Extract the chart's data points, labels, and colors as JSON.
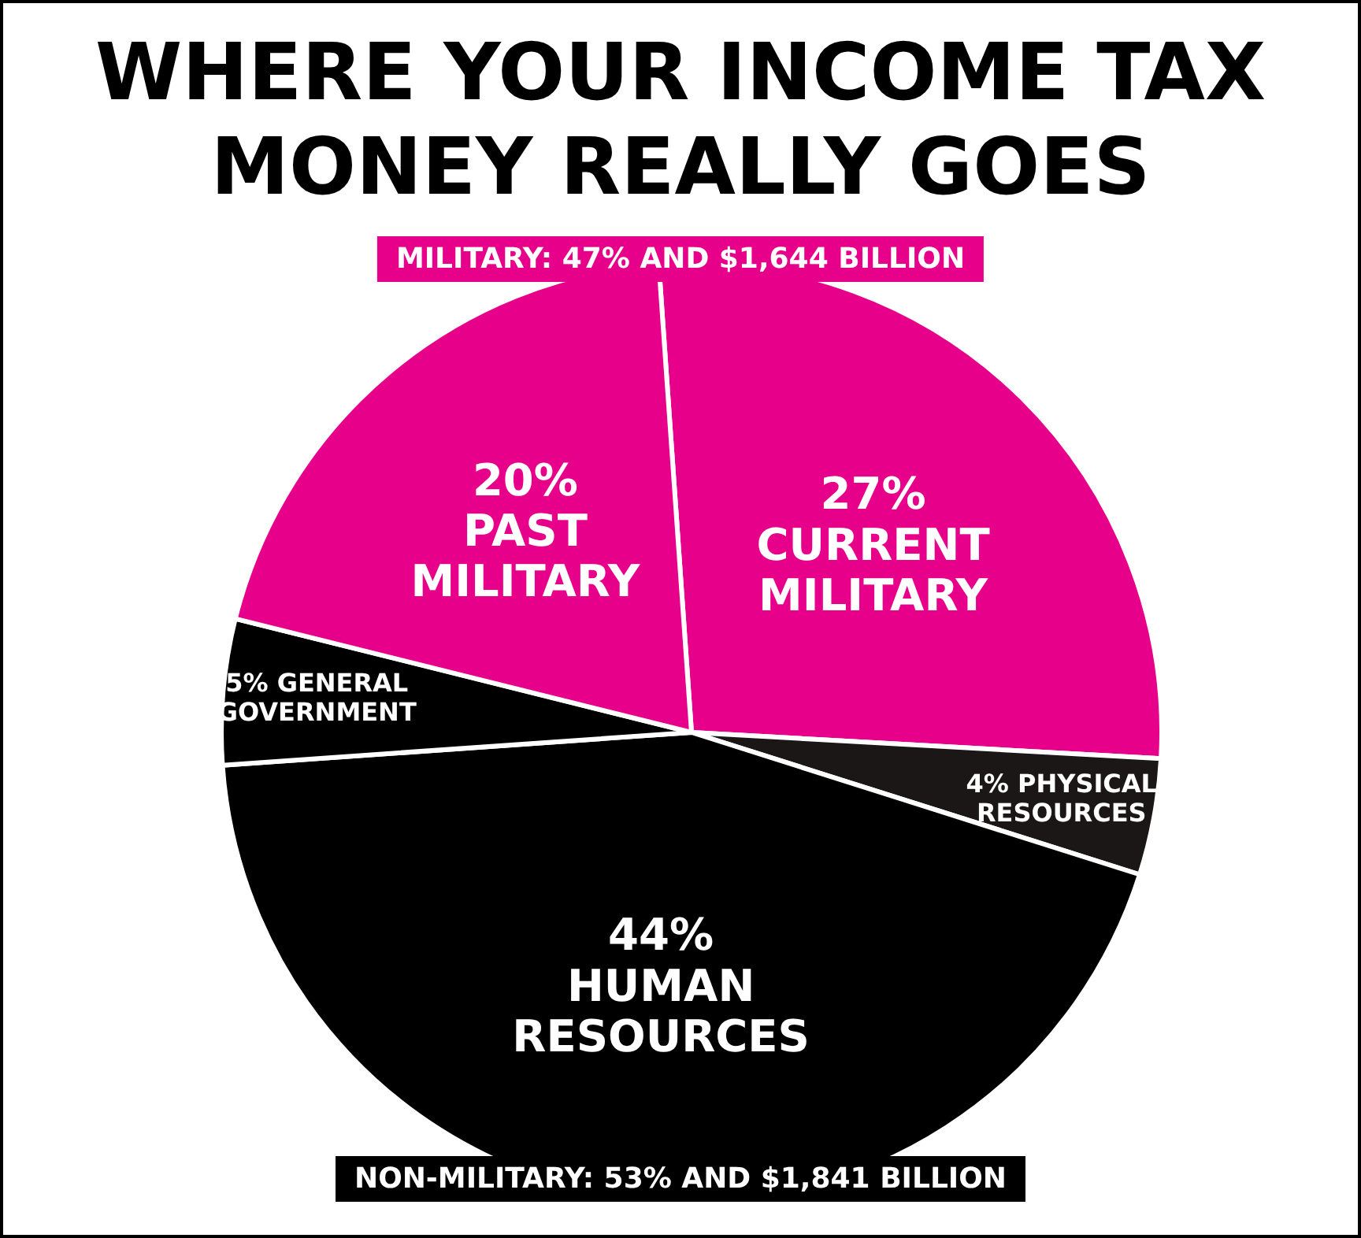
{
  "chart_data": {
    "type": "pie",
    "title": "WHERE YOUR INCOME TAX MONEY REALLY GOES",
    "categories": [
      "CURRENT MILITARY",
      "PHYSICAL RESOURCES",
      "HUMAN RESOURCES",
      "GENERAL GOVERNMENT",
      "PAST MILITARY"
    ],
    "values": [
      27,
      4,
      44,
      5,
      20
    ],
    "value_labels": [
      "27%",
      "4%",
      "44%",
      "5%",
      "20%"
    ],
    "colors": [
      "#e6008a",
      "#1c1717",
      "#000000",
      "#000000",
      "#e6008a"
    ],
    "annotations": [
      "MILITARY: 47% AND $1,644 BILLION",
      "NON-MILITARY: 53% AND $1,841 BILLION"
    ]
  }
}
